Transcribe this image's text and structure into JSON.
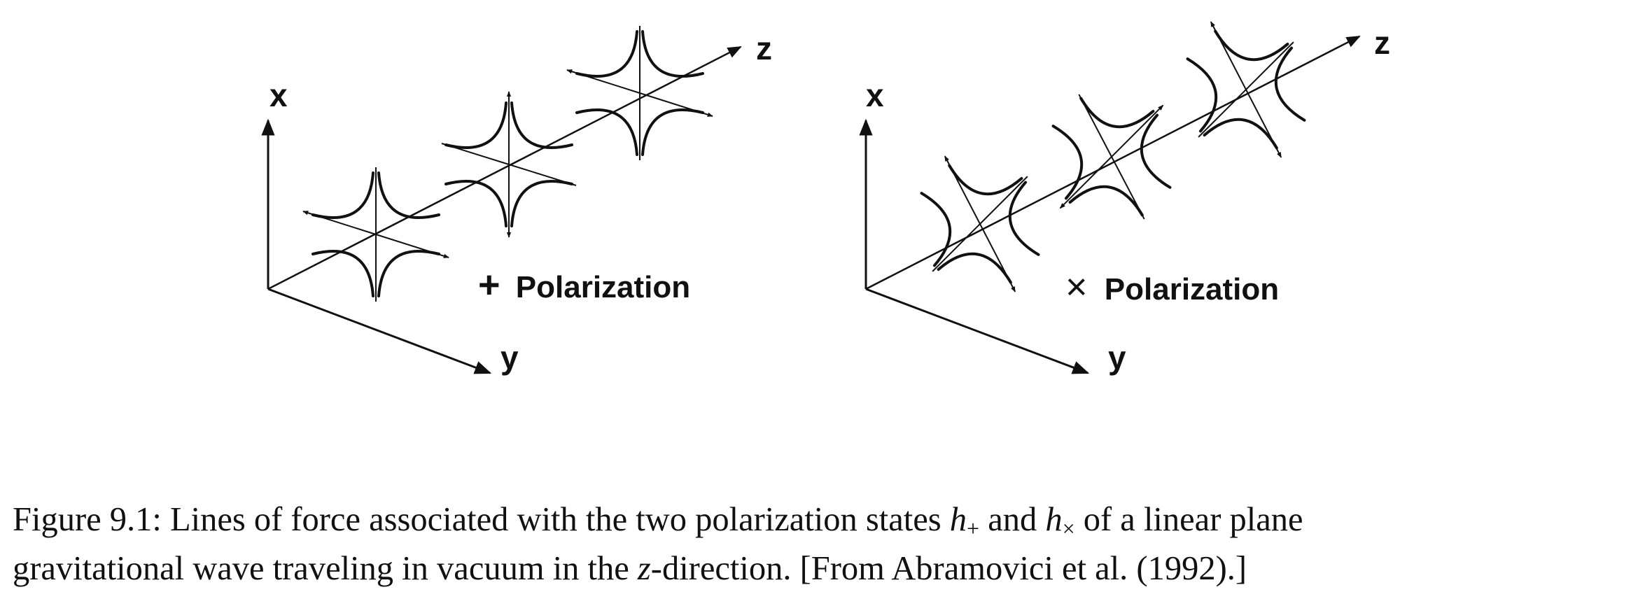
{
  "figure": {
    "axis_labels": {
      "x": "x",
      "y": "y",
      "z": "z"
    },
    "plus_panel": {
      "symbol": "+",
      "label": "Polarization"
    },
    "cross_panel": {
      "symbol": "×",
      "label": "Polarization"
    }
  },
  "caption": {
    "line1_a": "Figure 9.1: Lines of force associated with the two polarization states ",
    "h": "h",
    "sub_plus": "+",
    "and": " and ",
    "sub_cross": "×",
    "line1_b": " of a linear plane",
    "line2_a": "gravitational wave traveling in vacuum in the ",
    "z": "z",
    "line2_b": "-direction. [From Abramovici et al. (1992).]"
  }
}
